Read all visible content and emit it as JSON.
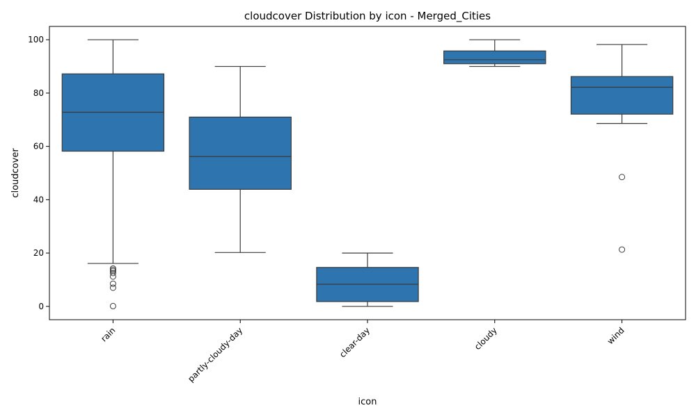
{
  "chart_data": {
    "type": "box",
    "title": "cloudcover Distribution by icon - Merged_Cities",
    "xlabel": "icon",
    "ylabel": "cloudcover",
    "ylim": [
      -5,
      105
    ],
    "yticks": [
      0,
      20,
      40,
      60,
      80,
      100
    ],
    "box_color": "#2e75b0",
    "line_color": "#3a3a3a",
    "categories": [
      "rain",
      "partly-cloudy-day",
      "clear-day",
      "cloudy",
      "wind"
    ],
    "boxes": [
      {
        "category": "rain",
        "whisker_low": 16.1,
        "q1": 58.2,
        "median": 72.8,
        "q3": 87.2,
        "whisker_high": 100,
        "outliers": [
          14.2,
          13.7,
          13.2,
          12.5,
          11.2,
          8.5,
          7.0,
          0.1
        ]
      },
      {
        "category": "partly-cloudy-day",
        "whisker_low": 20.2,
        "q1": 43.9,
        "median": 56.2,
        "q3": 71.0,
        "whisker_high": 90.0,
        "outliers": []
      },
      {
        "category": "clear-day",
        "whisker_low": 0.0,
        "q1": 1.8,
        "median": 8.3,
        "q3": 14.6,
        "whisker_high": 20.0,
        "outliers": []
      },
      {
        "category": "cloudy",
        "whisker_low": 90.0,
        "q1": 91.0,
        "median": 92.5,
        "q3": 95.8,
        "whisker_high": 100.0,
        "outliers": []
      },
      {
        "category": "wind",
        "whisker_low": 68.6,
        "q1": 72.1,
        "median": 82.2,
        "q3": 86.2,
        "whisker_high": 98.2,
        "outliers": [
          48.5,
          21.3
        ]
      }
    ]
  }
}
